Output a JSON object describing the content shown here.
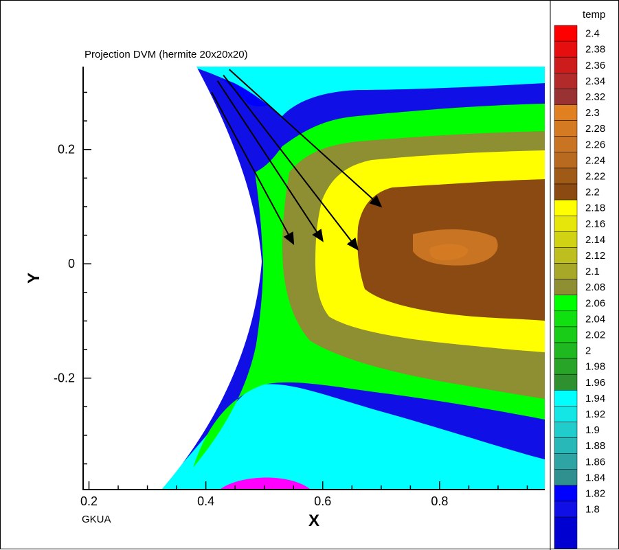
{
  "chart_data": {
    "type": "contour",
    "title": "Projection DVM (hermite 20x20x20)",
    "footer_label": "GKUA",
    "xlabel": "X",
    "ylabel": "Y",
    "xlim": [
      0.19,
      0.98
    ],
    "ylim": [
      -0.395,
      0.345
    ],
    "x_ticks": [
      "0.2",
      "0.4",
      "0.6",
      "0.8"
    ],
    "x_tick_values": [
      0.2,
      0.4,
      0.6,
      0.8
    ],
    "y_ticks": [
      "0.2",
      "0",
      "-0.2"
    ],
    "y_tick_values": [
      0.2,
      0,
      -0.2
    ],
    "legend_title": "temp",
    "legend_position": "right",
    "contour_levels": [
      "2.4",
      "2.38",
      "2.36",
      "2.34",
      "2.32",
      "2.3",
      "2.28",
      "2.26",
      "2.24",
      "2.22",
      "2.2",
      "2.18",
      "2.16",
      "2.14",
      "2.12",
      "2.1",
      "2.08",
      "2.06",
      "2.04",
      "2.02",
      "2",
      "1.98",
      "1.96",
      "1.94",
      "1.92",
      "1.9",
      "1.88",
      "1.86",
      "1.84",
      "1.82",
      "1.8"
    ],
    "level_colors": [
      "#ff0000",
      "#e60e0e",
      "#cc1c1c",
      "#b32a2a",
      "#993333",
      "#e08020",
      "#d47a22",
      "#c87422",
      "#b86a20",
      "#a05a18",
      "#8a4a12",
      "#ffff00",
      "#e6e60a",
      "#d2d214",
      "#bebe1e",
      "#a8a828",
      "#8e8e32",
      "#00ff00",
      "#10e010",
      "#18cc18",
      "#20b820",
      "#28a428",
      "#2e902e",
      "#00ffff",
      "#14e6e6",
      "#20cccc",
      "#28b8b8",
      "#2ea4a4",
      "#309090",
      "#0000ff",
      "#1010e6"
    ],
    "bottom_colors": [
      "#0000d0",
      "#ff00ff"
    ],
    "arrows": [
      {
        "from": [
          0.41,
          0.3
        ],
        "to": [
          0.55,
          0.035
        ]
      },
      {
        "from": [
          0.42,
          0.32
        ],
        "to": [
          0.6,
          0.04
        ]
      },
      {
        "from": [
          0.43,
          0.33
        ],
        "to": [
          0.66,
          0.025
        ]
      },
      {
        "from": [
          0.44,
          0.34
        ],
        "to": [
          0.7,
          0.1
        ]
      }
    ]
  }
}
